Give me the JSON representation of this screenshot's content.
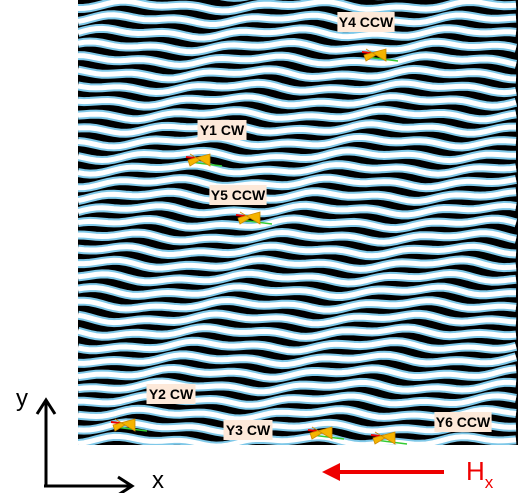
{
  "labels": [
    "Y4 CCW",
    "Y1 CW",
    "Y5 CCW",
    "Y2 CW",
    "Y3 CW",
    "Y6 CCW"
  ],
  "axes": {
    "y": "y",
    "x": "x"
  },
  "field": {
    "label": "H",
    "subscript": "x"
  }
}
